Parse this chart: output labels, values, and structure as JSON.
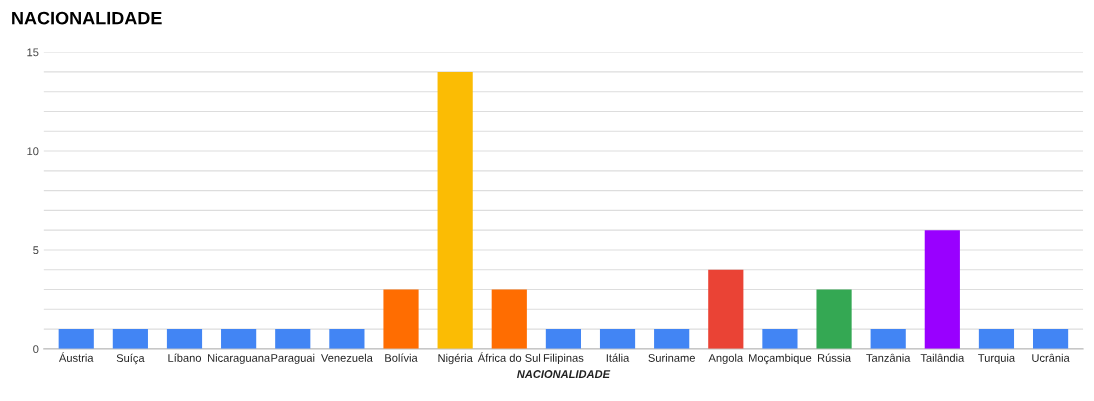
{
  "chart_data": {
    "type": "bar",
    "title": "NACIONALIDADE",
    "xlabel": "NACIONALIDADE",
    "categories": [
      "Áustria",
      "Suíça",
      "Líbano",
      "Nicaraguana",
      "Paraguai",
      "Venezuela",
      "Bolívia",
      "Nigéria",
      "África do Sul",
      "Filipinas",
      "Itália",
      "Suriname",
      "Angola",
      "Moçambique",
      "Rússia",
      "Tanzânia",
      "Tailândia",
      "Turquia",
      "Ucrânia"
    ],
    "values": [
      1,
      1,
      1,
      1,
      1,
      1,
      3,
      14,
      3,
      1,
      1,
      1,
      4,
      1,
      3,
      1,
      6,
      1,
      1
    ],
    "colors": [
      "#4285f4",
      "#4285f4",
      "#4285f4",
      "#4285f4",
      "#4285f4",
      "#4285f4",
      "#ff6d01",
      "#fbbc04",
      "#ff6d01",
      "#4285f4",
      "#4285f4",
      "#4285f4",
      "#ea4335",
      "#4285f4",
      "#34a853",
      "#4285f4",
      "#9900ff",
      "#4285f4",
      "#4285f4"
    ],
    "ylim": [
      0,
      15
    ],
    "yticks": [
      0,
      {
        "value": 1,
        "label": null
      },
      {
        "value": 2,
        "label": null
      },
      {
        "value": 3,
        "label": null
      },
      {
        "value": 4,
        "label": null
      },
      5,
      {
        "value": 6,
        "label": null
      },
      {
        "value": 7,
        "label": null
      },
      {
        "value": 8,
        "label": null
      },
      {
        "value": 9,
        "label": null
      },
      10,
      {
        "value": 11,
        "label": null
      },
      {
        "value": 12,
        "label": null
      },
      {
        "value": 13,
        "label": null
      },
      {
        "value": 14,
        "label": null
      },
      15
    ],
    "grid": "y",
    "legend": false
  }
}
